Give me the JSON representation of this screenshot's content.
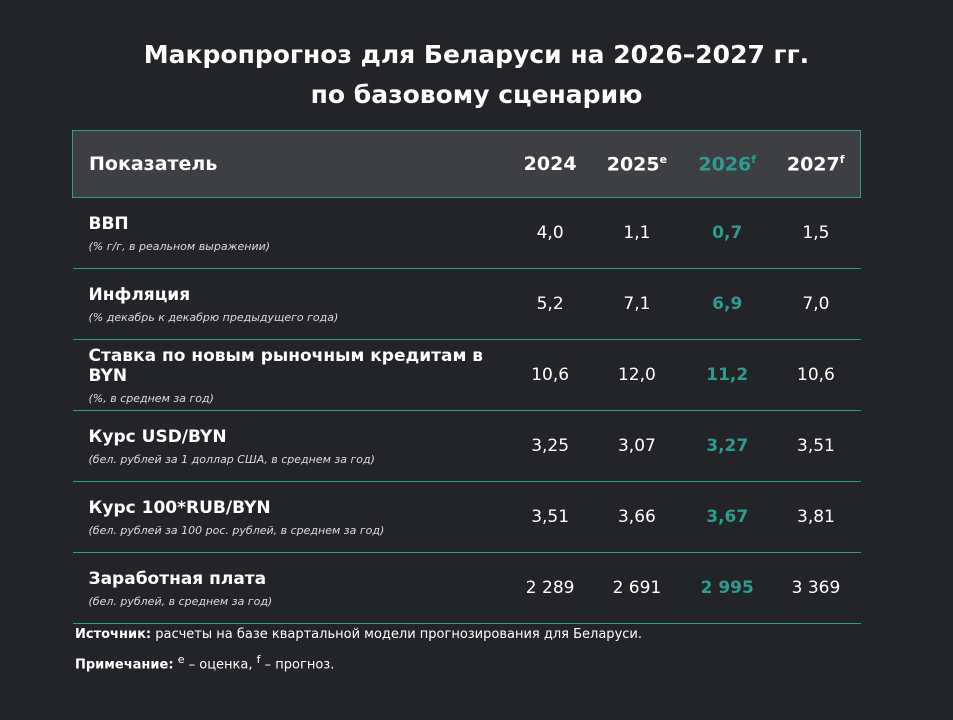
{
  "title": {
    "line1": "Макропрогноз для Беларуси на 2026–2027 гг.",
    "line2": "по базовому сценарию"
  },
  "table": {
    "header": [
      {
        "label": "Показатель"
      },
      {
        "label": "2024"
      },
      {
        "label": "2025",
        "sup": "e"
      },
      {
        "label": "2026",
        "sup": "f"
      },
      {
        "label": "2027",
        "sup": "f"
      }
    ],
    "highlight_column": 3,
    "rows": [
      {
        "name": "ВВП",
        "unit": "(% г/г, в реальном выражении)",
        "values": [
          "4,0",
          "1,1",
          "0,7",
          "1,5"
        ]
      },
      {
        "name": "Инфляция",
        "unit": "(% декабрь к декабрю предыдущего года)",
        "values": [
          "5,2",
          "7,1",
          "6,9",
          "7,0"
        ]
      },
      {
        "name": "Ставка по новым рыночным кредитам в BYN",
        "unit": "(%, в среднем за год)",
        "values": [
          "10,6",
          "12,0",
          "11,2",
          "10,6"
        ]
      },
      {
        "name": "Курс USD/BYN",
        "unit": "(бел. рублей за 1 доллар США, в среднем за год)",
        "values": [
          "3,25",
          "3,07",
          "3,27",
          "3,51"
        ]
      },
      {
        "name": "Курс 100*RUB/BYN",
        "unit": "(бел. рублей за 100 рос. рублей, в среднем за год)",
        "values": [
          "3,51",
          "3,66",
          "3,67",
          "3,81"
        ]
      },
      {
        "name": "Заработная плата",
        "unit": "(бел. рублей, в среднем за год)",
        "values": [
          "2 289",
          "2 691",
          "2 995",
          "3 369"
        ]
      }
    ]
  },
  "footer": {
    "source": {
      "label": "Источник:",
      "text": "расчеты на базе квартальной модели прогнозирования для Беларуси."
    },
    "note": {
      "label": "Примечание:",
      "sup1": "e",
      "text1": "– оценка,",
      "sup2": "f",
      "text2": "– прогноз."
    }
  }
}
